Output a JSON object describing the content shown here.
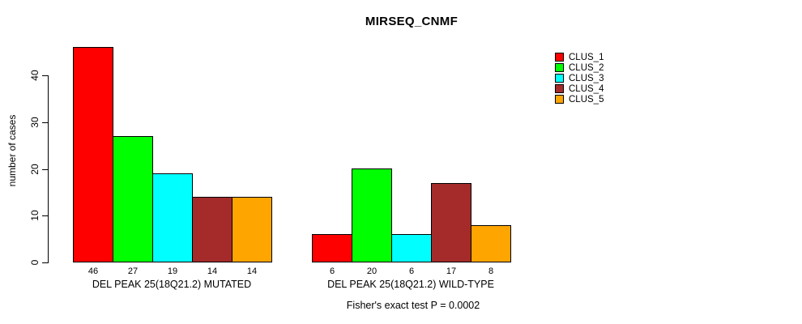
{
  "chart_data": {
    "type": "bar",
    "title": "MIRSEQ_CNMF",
    "ylabel": "number of cases",
    "xlabel": "",
    "ylim": [
      0,
      46
    ],
    "yticks": [
      0,
      10,
      20,
      30,
      40
    ],
    "grid": false,
    "legend_position": "top-right",
    "bar_value_labels_shown": true,
    "categories": [
      "DEL PEAK 25(18Q21.2) MUTATED",
      "DEL PEAK 25(18Q21.2) WILD-TYPE"
    ],
    "series": [
      {
        "name": "CLUS_1",
        "color": "#FF0000",
        "values": [
          46,
          6
        ]
      },
      {
        "name": "CLUS_2",
        "color": "#00FF00",
        "values": [
          27,
          20
        ]
      },
      {
        "name": "CLUS_3",
        "color": "#00FFFF",
        "values": [
          19,
          6
        ]
      },
      {
        "name": "CLUS_4",
        "color": "#A52A2A",
        "values": [
          14,
          17
        ]
      },
      {
        "name": "CLUS_5",
        "color": "#FFA500",
        "values": [
          14,
          8
        ]
      }
    ],
    "footnote": "Fisher's exact test P = 0.0002",
    "axis_color": "#000000",
    "text_color": "#000000",
    "background_color": "#FFFFFF"
  }
}
